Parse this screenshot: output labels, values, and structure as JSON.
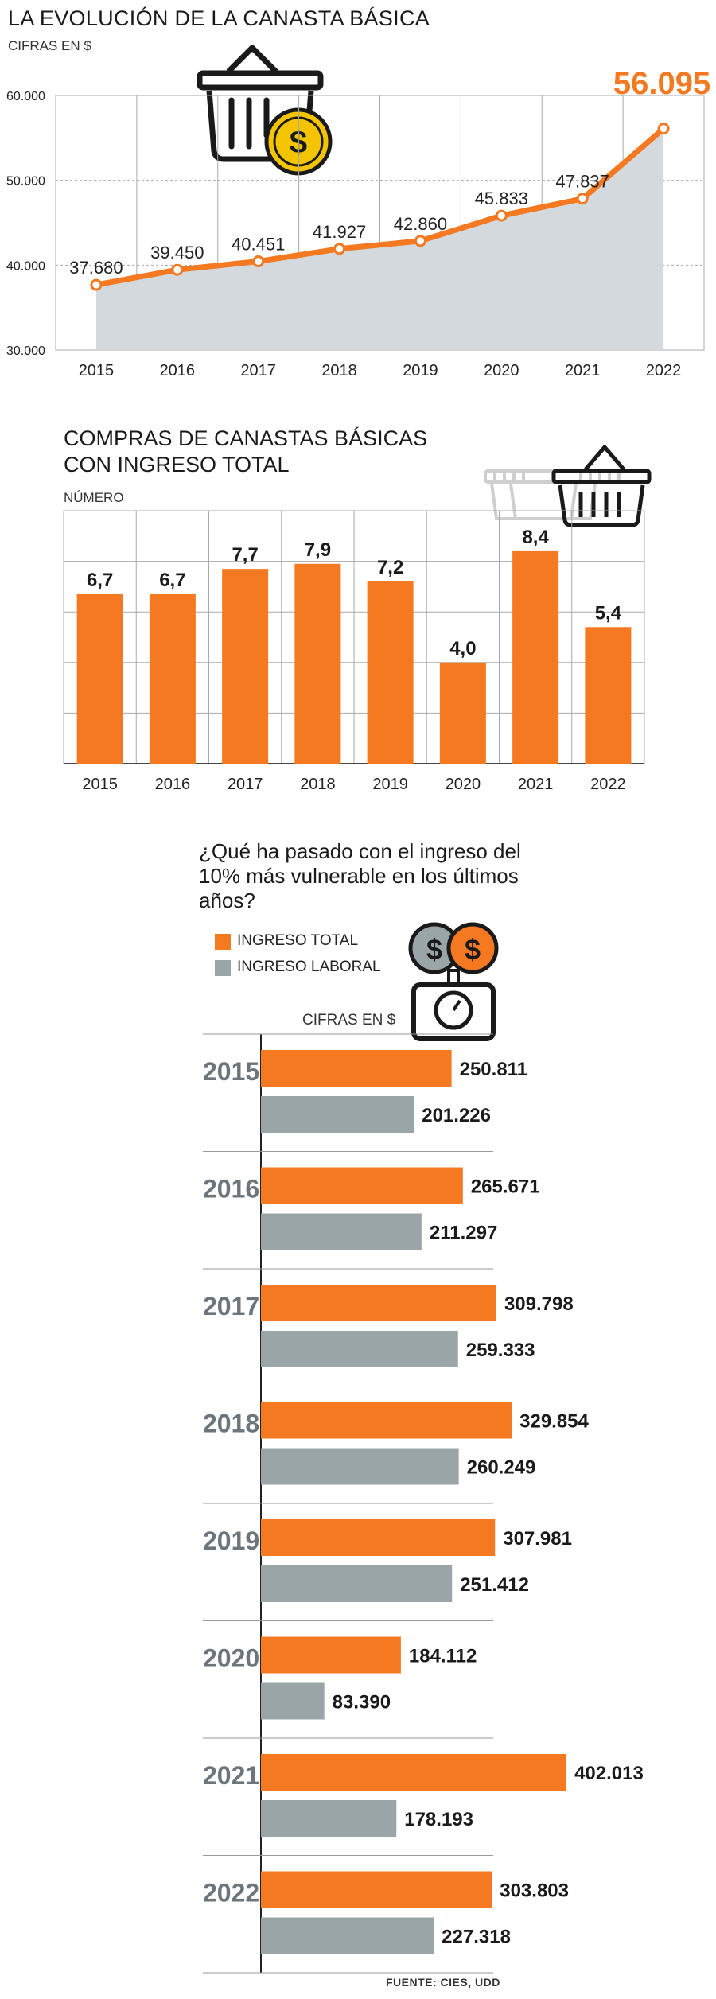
{
  "chart_data": [
    {
      "type": "area",
      "title": "LA EVOLUCIÓN DE LA CANASTA BÁSICA",
      "subtitle": "CIFRAS EN $",
      "x": [
        "2015",
        "2016",
        "2017",
        "2018",
        "2019",
        "2020",
        "2021",
        "2022"
      ],
      "values": [
        37680,
        39450,
        40451,
        41927,
        42860,
        45833,
        47837,
        56095
      ],
      "value_labels": [
        "37.680",
        "39.450",
        "40.451",
        "41.927",
        "42.860",
        "45.833",
        "47.837",
        "56.095"
      ],
      "y_ticks": [
        30000,
        40000,
        50000,
        60000
      ],
      "y_tick_labels": [
        "30.000",
        "40.000",
        "50.000",
        "60.000"
      ],
      "ylim": [
        30000,
        60000
      ],
      "highlight_last": true,
      "grid": true,
      "colors": {
        "line": "#f47920",
        "area": "#d3d9dc",
        "grid": "#aaaaaa"
      },
      "icon": "shopping-basket-coin-icon"
    },
    {
      "type": "bar",
      "title": "COMPRAS DE CANASTAS BÁSICAS CON INGRESO TOTAL",
      "subtitle": "NÚMERO",
      "categories": [
        "2015",
        "2016",
        "2017",
        "2018",
        "2019",
        "2020",
        "2021",
        "2022"
      ],
      "values": [
        6.7,
        6.7,
        7.7,
        7.9,
        7.2,
        4.0,
        8.4,
        5.4
      ],
      "value_labels": [
        "6,7",
        "6,7",
        "7,7",
        "7,9",
        "7,2",
        "4,0",
        "8,4",
        "5,4"
      ],
      "ylim": [
        0,
        10
      ],
      "grid": true,
      "colors": {
        "bar": "#f47920",
        "grid": "#aaaaaa"
      },
      "icon": "stacked-baskets-icon"
    },
    {
      "type": "bar",
      "orientation": "horizontal",
      "title": "¿Qué ha pasado con el ingreso del 10% más vulnerable en los últimos años?",
      "subtitle": "CIFRAS EN $",
      "categories": [
        "2015",
        "2016",
        "2017",
        "2018",
        "2019",
        "2020",
        "2021",
        "2022"
      ],
      "series": [
        {
          "name": "INGRESO TOTAL",
          "color": "#f47920",
          "values": [
            250811,
            265671,
            309798,
            329854,
            307981,
            184112,
            402013,
            303803
          ],
          "value_labels": [
            "250.811",
            "265.671",
            "309.798",
            "329.854",
            "307.981",
            "184.112",
            "402.013",
            "303.803"
          ]
        },
        {
          "name": "INGRESO LABORAL",
          "color": "#9aa5a8",
          "values": [
            201226,
            211297,
            259333,
            260249,
            251412,
            83390,
            178193,
            227318
          ],
          "value_labels": [
            "201.226",
            "211.297",
            "259.333",
            "260.249",
            "251.412",
            "83.390",
            "178.193",
            "227.318"
          ]
        }
      ],
      "xlim": [
        0,
        560000
      ],
      "legend": "top-left",
      "icon": "money-scale-icon"
    }
  ],
  "footer": {
    "source": "FUENTE: CIES, UDD"
  }
}
